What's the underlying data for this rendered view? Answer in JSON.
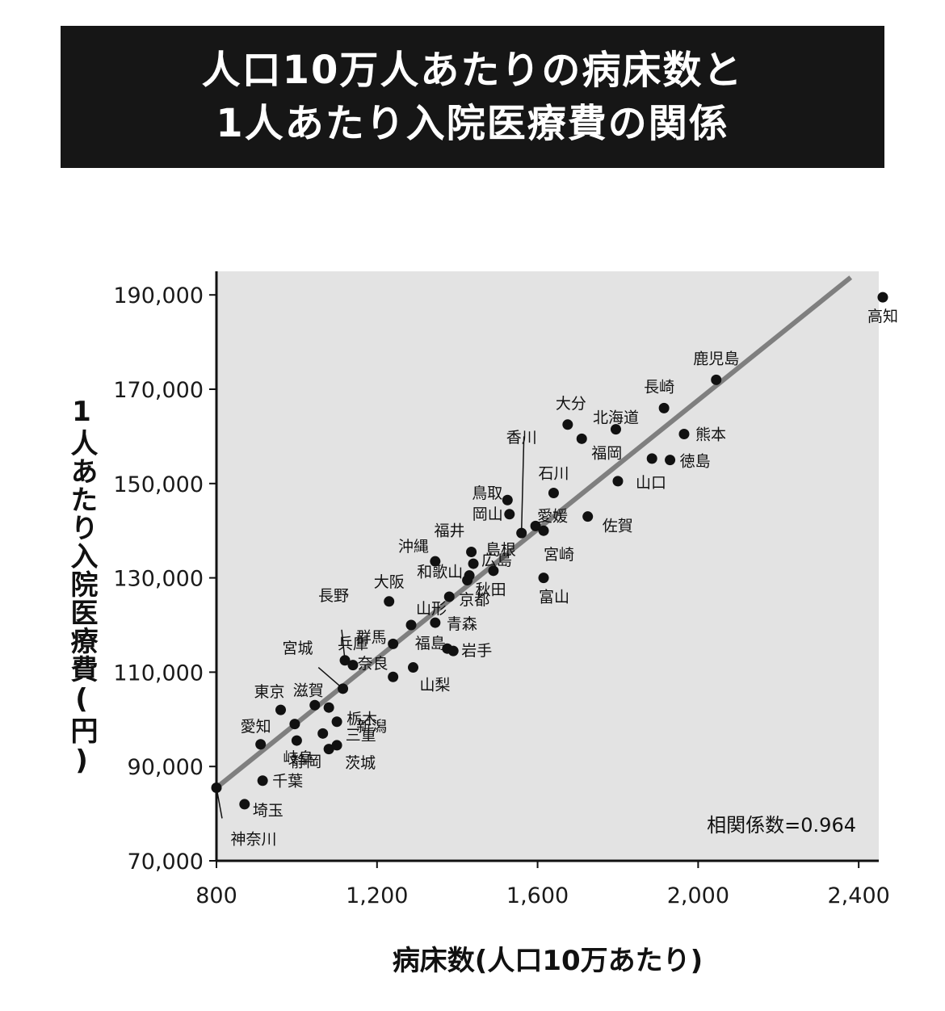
{
  "title_line1": "人口10万人あたりの病床数と",
  "title_line2": "1人あたり入院医療費の関係",
  "chart_data": {
    "type": "scatter",
    "xlabel": "病床数(人口10万あたり)",
    "ylabel": "1人あたり入院医療費(円)",
    "xlim": [
      800,
      2450
    ],
    "ylim": [
      70000,
      195000
    ],
    "xticks": [
      800,
      1200,
      1600,
      2000,
      2400
    ],
    "xtick_labels": [
      "800",
      "1,200",
      "1,600",
      "2,000",
      "2,400"
    ],
    "yticks": [
      70000,
      90000,
      110000,
      130000,
      150000,
      170000,
      190000
    ],
    "ytick_labels": [
      "70,000",
      "90,000",
      "110,000",
      "130,000",
      "150,000",
      "170,000",
      "190,000"
    ],
    "annotation": "相関係数=0.964",
    "trendline": {
      "x": [
        800,
        2380
      ],
      "y": [
        85500,
        193700
      ]
    },
    "colors": {
      "plot_bg": "#e3e3e3",
      "points": "#111111",
      "trendline": "#7f7f7f"
    },
    "points": [
      {
        "label": "高知",
        "x": 2460,
        "y": 189500
      },
      {
        "label": "鹿児島",
        "x": 2045,
        "y": 172000
      },
      {
        "label": "長崎",
        "x": 1915,
        "y": 166000
      },
      {
        "label": "大分",
        "x": 1675,
        "y": 162500
      },
      {
        "label": "北海道",
        "x": 1795,
        "y": 161500
      },
      {
        "label": "熊本",
        "x": 1965,
        "y": 160500
      },
      {
        "label": "福岡",
        "x": 1710,
        "y": 159500
      },
      {
        "label": "徳島",
        "x": 1930,
        "y": 155000
      },
      {
        "label": "",
        "x": 1885,
        "y": 155300
      },
      {
        "label": "山口",
        "x": 1800,
        "y": 150500
      },
      {
        "label": "石川",
        "x": 1640,
        "y": 148000
      },
      {
        "label": "鳥取",
        "x": 1525,
        "y": 146500
      },
      {
        "label": "岡山",
        "x": 1530,
        "y": 143500
      },
      {
        "label": "佐賀",
        "x": 1725,
        "y": 143000
      },
      {
        "label": "愛媛",
        "x": 1595,
        "y": 141000
      },
      {
        "label": "香川",
        "x": 1560,
        "y": 139500
      },
      {
        "label": "宮崎",
        "x": 1615,
        "y": 140000
      },
      {
        "label": "福井",
        "x": 1435,
        "y": 135500
      },
      {
        "label": "沖縄",
        "x": 1345,
        "y": 133500
      },
      {
        "label": "広島",
        "x": 1440,
        "y": 133000
      },
      {
        "label": "島根",
        "x": 1490,
        "y": 131500
      },
      {
        "label": "和歌山",
        "x": 1430,
        "y": 130500
      },
      {
        "label": "秋田",
        "x": 1425,
        "y": 129500
      },
      {
        "label": "富山",
        "x": 1615,
        "y": 130000
      },
      {
        "label": "大阪",
        "x": 1230,
        "y": 125000
      },
      {
        "label": "京都",
        "x": 1380,
        "y": 126000
      },
      {
        "label": "山形",
        "x": 1285,
        "y": 120000
      },
      {
        "label": "青森",
        "x": 1345,
        "y": 120500
      },
      {
        "label": "群馬",
        "x": 1240,
        "y": 116000
      },
      {
        "label": "福島",
        "x": 1375,
        "y": 115000
      },
      {
        "label": "岩手",
        "x": 1390,
        "y": 114500
      },
      {
        "label": "長野",
        "x": 1120,
        "y": 112500
      },
      {
        "label": "兵庫",
        "x": 1140,
        "y": 111500
      },
      {
        "label": "奈良",
        "x": 1240,
        "y": 109000
      },
      {
        "label": "山梨",
        "x": 1290,
        "y": 111000
      },
      {
        "label": "宮城",
        "x": 1115,
        "y": 106500
      },
      {
        "label": "滋賀",
        "x": 1045,
        "y": 103000
      },
      {
        "label": "新潟",
        "x": 1080,
        "y": 102500
      },
      {
        "label": "東京",
        "x": 960,
        "y": 102000
      },
      {
        "label": "栃木",
        "x": 1100,
        "y": 99500
      },
      {
        "label": "",
        "x": 995,
        "y": 99000
      },
      {
        "label": "三重",
        "x": 1065,
        "y": 97000
      },
      {
        "label": "愛知",
        "x": 910,
        "y": 94700
      },
      {
        "label": "岐阜",
        "x": 1000,
        "y": 95500
      },
      {
        "label": "静岡",
        "x": 1080,
        "y": 93700
      },
      {
        "label": "茨城",
        "x": 1100,
        "y": 94500
      },
      {
        "label": "千葉",
        "x": 915,
        "y": 87000
      },
      {
        "label": "埼玉",
        "x": 870,
        "y": 82000
      },
      {
        "label": "神奈川",
        "x": 800,
        "y": 85500
      }
    ]
  }
}
